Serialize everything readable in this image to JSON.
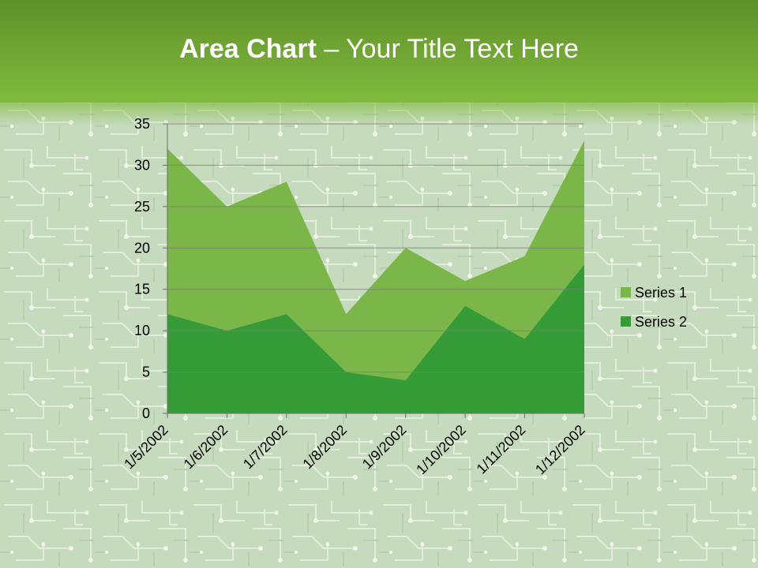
{
  "slide": {
    "title_bold": "Area Chart",
    "title_rest": " – Your Title Text Here"
  },
  "colors": {
    "series1": "#7ab648",
    "series2": "#359b37",
    "axis": "#6f6f6f",
    "grid": "#7d7d7d",
    "text": "#000000"
  },
  "chart_data": {
    "type": "area",
    "stacked": true,
    "categories": [
      "1/5/2002",
      "1/6/2002",
      "1/7/2002",
      "1/8/2002",
      "1/9/2002",
      "1/10/2002",
      "1/11/2002",
      "1/12/2002"
    ],
    "series": [
      {
        "name": "Series 1",
        "values": [
          20,
          15,
          16,
          7,
          16,
          3,
          10,
          15
        ]
      },
      {
        "name": "Series 2",
        "values": [
          12,
          10,
          12,
          5,
          4,
          13,
          9,
          18
        ]
      }
    ],
    "ylim": [
      0,
      35
    ],
    "yticks": [
      0,
      5,
      10,
      15,
      20,
      25,
      30,
      35
    ],
    "grid": true,
    "legend": "right"
  }
}
